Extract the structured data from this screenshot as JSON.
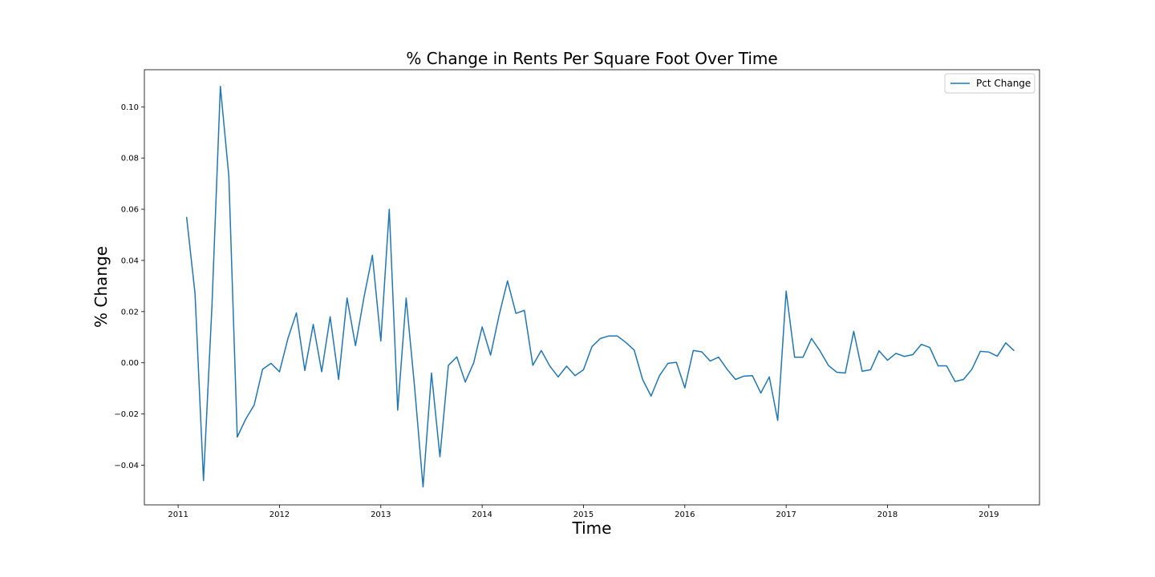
{
  "chart_data": {
    "type": "line",
    "title": "% Change in Rents Per Square Foot Over Time",
    "xlabel": "Time",
    "ylabel": "% Change",
    "x_ticks": [
      "2011",
      "2012",
      "2013",
      "2014",
      "2015",
      "2016",
      "2017",
      "2018",
      "2019"
    ],
    "y_ticks": [
      "−0.04",
      "−0.02",
      "0.00",
      "0.02",
      "0.04",
      "0.06",
      "0.08",
      "0.10"
    ],
    "xlim": [
      "2010-09",
      "2019-07"
    ],
    "ylim": [
      -0.0555,
      0.1145
    ],
    "grid": false,
    "legend_position": "top-right",
    "series": [
      {
        "name": "Pct Change",
        "color": "#1f77b4",
        "x": [
          "2011-02",
          "2011-03",
          "2011-04",
          "2011-05",
          "2011-06",
          "2011-07",
          "2011-08",
          "2011-09",
          "2011-10",
          "2011-11",
          "2011-12",
          "2012-01",
          "2012-02",
          "2012-03",
          "2012-04",
          "2012-05",
          "2012-06",
          "2012-07",
          "2012-08",
          "2012-09",
          "2012-10",
          "2012-11",
          "2012-12",
          "2013-01",
          "2013-02",
          "2013-03",
          "2013-04",
          "2013-05",
          "2013-06",
          "2013-07",
          "2013-08",
          "2013-09",
          "2013-10",
          "2013-11",
          "2013-12",
          "2014-01",
          "2014-02",
          "2014-03",
          "2014-04",
          "2014-05",
          "2014-06",
          "2014-07",
          "2014-08",
          "2014-09",
          "2014-10",
          "2014-11",
          "2014-12",
          "2015-01",
          "2015-02",
          "2015-03",
          "2015-04",
          "2015-05",
          "2015-06",
          "2015-07",
          "2015-08",
          "2015-09",
          "2015-10",
          "2015-11",
          "2015-12",
          "2016-01",
          "2016-02",
          "2016-03",
          "2016-04",
          "2016-05",
          "2016-06",
          "2016-07",
          "2016-08",
          "2016-09",
          "2016-10",
          "2016-11",
          "2016-12",
          "2017-01",
          "2017-02",
          "2017-03",
          "2017-04",
          "2017-05",
          "2017-06",
          "2017-07",
          "2017-08",
          "2017-09",
          "2017-10",
          "2017-11",
          "2017-12",
          "2018-01",
          "2018-02",
          "2018-03",
          "2018-04",
          "2018-05",
          "2018-06",
          "2018-07",
          "2018-08",
          "2018-09",
          "2018-10",
          "2018-11",
          "2018-12",
          "2019-01",
          "2019-02",
          "2019-03",
          "2019-04"
        ],
        "y": [
          0.057,
          0.027,
          -0.046,
          0.022,
          0.108,
          0.073,
          -0.029,
          -0.022,
          -0.0165,
          -0.0025,
          -0.0002,
          -0.0035,
          0.0095,
          0.0195,
          -0.003,
          0.015,
          -0.0035,
          0.018,
          -0.0065,
          0.0253,
          0.0067,
          0.0255,
          0.042,
          0.0085,
          0.06,
          -0.0185,
          0.0253,
          -0.0095,
          -0.0485,
          -0.004,
          -0.0367,
          -0.001,
          0.0023,
          -0.0075,
          0.0,
          0.014,
          0.003,
          0.0185,
          0.032,
          0.0193,
          0.0205,
          -0.001,
          0.0048,
          -0.0012,
          -0.0055,
          -0.0013,
          -0.005,
          -0.0027,
          0.0063,
          0.0095,
          0.0105,
          0.0105,
          0.008,
          0.005,
          -0.0065,
          -0.013,
          -0.005,
          -0.0002,
          0.0002,
          -0.0098,
          0.0048,
          0.0043,
          0.0007,
          0.0022,
          -0.0025,
          -0.0065,
          -0.0052,
          -0.005,
          -0.0118,
          -0.0055,
          -0.0225,
          0.028,
          0.0022,
          0.0022,
          0.0095,
          0.0047,
          -0.001,
          -0.0037,
          -0.004,
          0.0123,
          -0.0033,
          -0.0027,
          0.0047,
          0.001,
          0.0037,
          0.0025,
          0.0032,
          0.0072,
          0.006,
          -0.0012,
          -0.0012,
          -0.0073,
          -0.0065,
          -0.0025,
          0.0045,
          0.0042,
          0.0026,
          0.0078,
          0.0047
        ]
      }
    ]
  }
}
